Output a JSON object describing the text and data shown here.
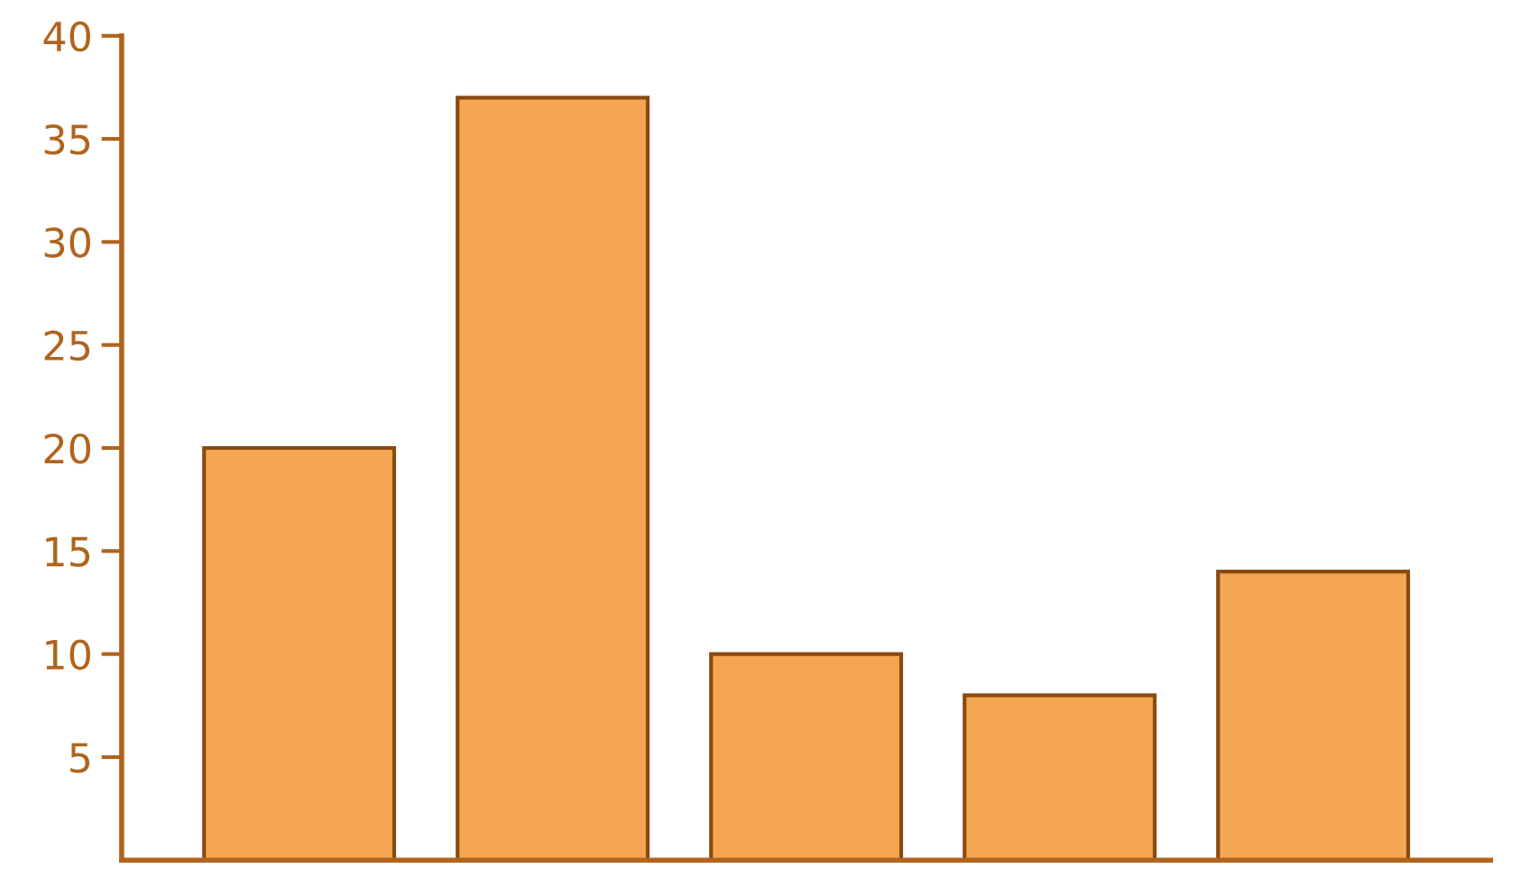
{
  "chart_data": {
    "type": "bar",
    "categories": [
      null,
      null,
      null,
      null,
      null
    ],
    "values": [
      20,
      37,
      10,
      8,
      14
    ],
    "color": "#f5a652",
    "ylim": [
      0,
      40
    ],
    "yticks": [
      5,
      10,
      15,
      20,
      25,
      30,
      35,
      40
    ],
    "grid": false
  }
}
